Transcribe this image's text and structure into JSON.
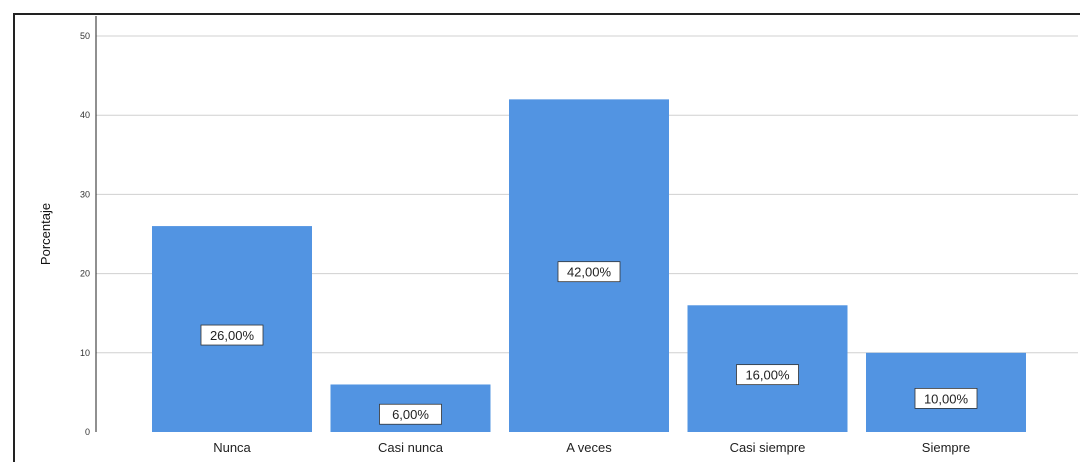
{
  "chart_data": {
    "type": "bar",
    "ylabel": "Porcentaje",
    "xlabel": "",
    "categories": [
      "Nunca",
      "Casi nunca",
      "A veces",
      "Casi siempre",
      "Siempre"
    ],
    "values": [
      26,
      6,
      42,
      16,
      10
    ],
    "data_labels": [
      "26,00%",
      "6,00%",
      "42,00%",
      "16,00%",
      "10,00%"
    ],
    "yticks": [
      "0",
      "10",
      "20",
      "30",
      "40",
      "50"
    ],
    "ylim": [
      0,
      50
    ],
    "grid": true,
    "legend": "none",
    "colors": {
      "bar": "#5294e2",
      "grid": "#d0d0d0",
      "axis": "#222222"
    }
  }
}
